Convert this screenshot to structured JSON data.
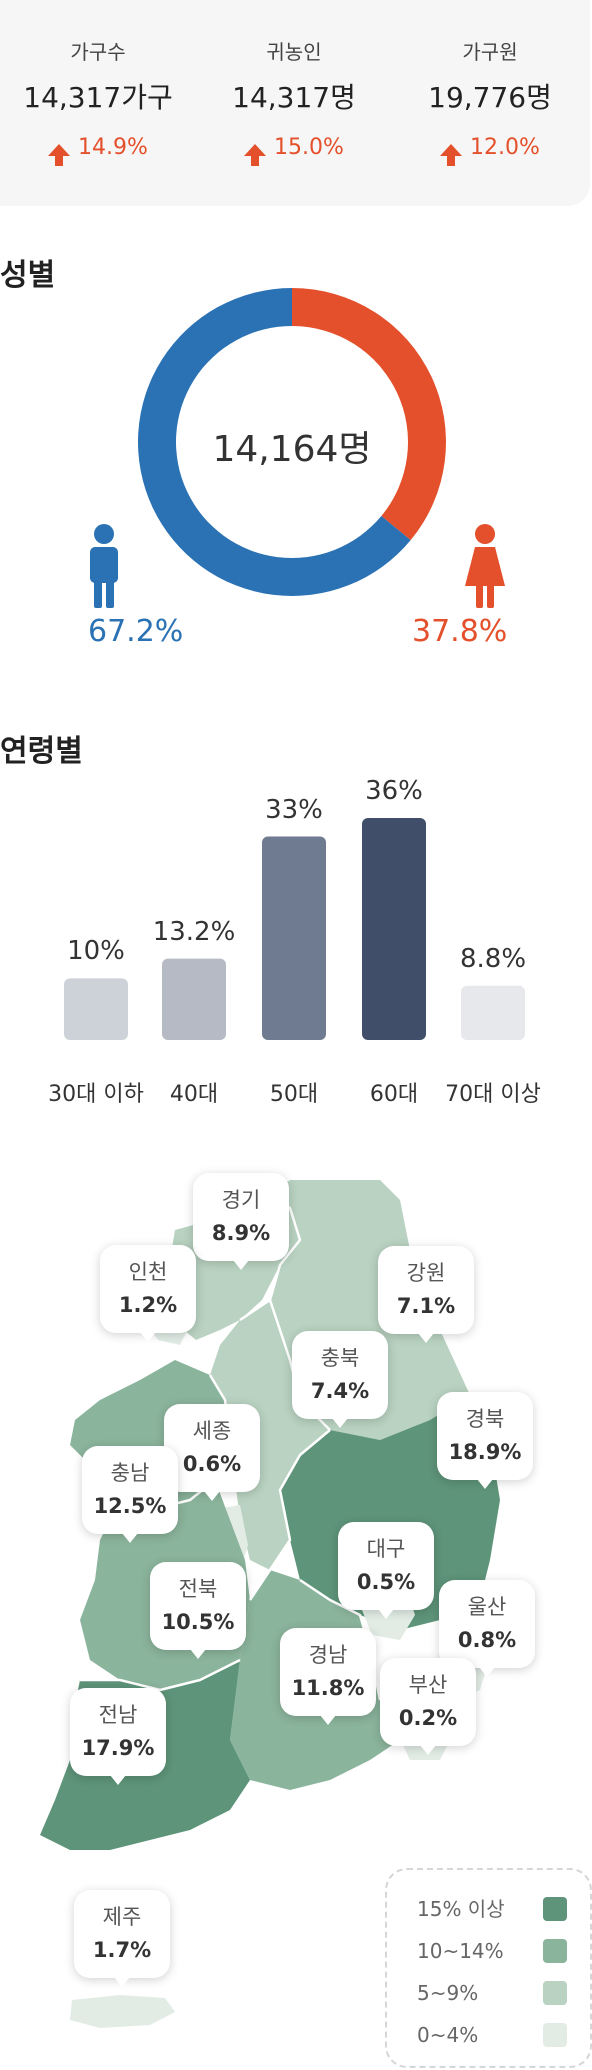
{
  "stats": [
    {
      "label": "가구수",
      "value": "14,317가구",
      "change": "14.9%"
    },
    {
      "label": "귀농인",
      "value": "14,317명",
      "change": "15.0%"
    },
    {
      "label": "가구원",
      "value": "19,776명",
      "change": "12.0%"
    }
  ],
  "colors": {
    "accent_red": "#e4502b",
    "accent_blue": "#2a72b4"
  },
  "gender": {
    "title": "성별",
    "total": "14,164명",
    "male_pct_label": "67.2%",
    "female_pct_label": "37.8%",
    "male_icon": "male-person-icon",
    "female_icon": "female-person-icon"
  },
  "age": {
    "title": "연령별"
  },
  "chart_data": [
    {
      "type": "pie",
      "variant": "donut",
      "labels": [
        "남",
        "여"
      ],
      "values": [
        67.2,
        37.8
      ],
      "colors": [
        "#2a72b4",
        "#e4502b"
      ]
    },
    {
      "type": "bar",
      "categories": [
        "30대 이하",
        "40대",
        "50대",
        "60대",
        "70대 이상"
      ],
      "values": [
        10,
        13.2,
        33,
        36,
        8.8
      ],
      "value_labels": [
        "10%",
        "13.2%",
        "33%",
        "36%",
        "8.8%"
      ],
      "colors": [
        "#cdd1d8",
        "#b6bac5",
        "#6f7b91",
        "#404e69",
        "#e6e8eb"
      ],
      "ylim": [
        0,
        36
      ]
    }
  ],
  "map": {
    "regions": [
      {
        "name": "경기",
        "value": "8.9%"
      },
      {
        "name": "인천",
        "value": "1.2%"
      },
      {
        "name": "강원",
        "value": "7.1%"
      },
      {
        "name": "충북",
        "value": "7.4%"
      },
      {
        "name": "세종",
        "value": "0.6%"
      },
      {
        "name": "경북",
        "value": "18.9%"
      },
      {
        "name": "충남",
        "value": "12.5%"
      },
      {
        "name": "대구",
        "value": "0.5%"
      },
      {
        "name": "전북",
        "value": "10.5%"
      },
      {
        "name": "울산",
        "value": "0.8%"
      },
      {
        "name": "경남",
        "value": "11.8%"
      },
      {
        "name": "부산",
        "value": "0.2%"
      },
      {
        "name": "전남",
        "value": "17.9%"
      },
      {
        "name": "제주",
        "value": "1.7%"
      }
    ],
    "legend": [
      {
        "label": "15% 이상",
        "color": "#5e9479"
      },
      {
        "label": "10~14%",
        "color": "#8bb49c"
      },
      {
        "label": "5~9%",
        "color": "#b9d2c1"
      },
      {
        "label": "0~4%",
        "color": "#e2ece5"
      }
    ]
  }
}
